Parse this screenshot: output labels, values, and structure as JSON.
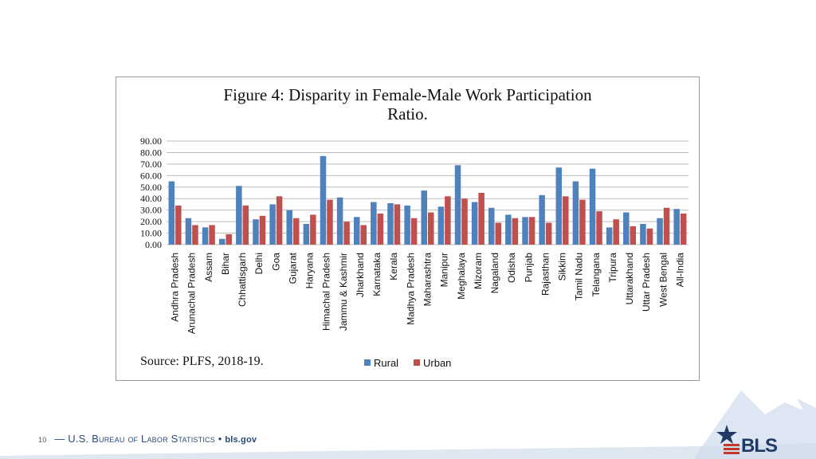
{
  "chart_data": {
    "type": "bar",
    "title": "Figure 4: Disparity in Female-Male Work Participation Ratio.",
    "title_lines": [
      "Figure 4: Disparity in Female-Male Work Participation",
      "Ratio."
    ],
    "categories": [
      "Andhra Pradesh",
      "Arunachal Pradesh",
      "Assam",
      "Bihar",
      "Chhattisgarh",
      "Delhi",
      "Goa",
      "Gujarat",
      "Haryana",
      "Himachal Pradesh",
      "Jammu & Kashmir",
      "Jharkhand",
      "Karnataka",
      "Kerala",
      "Madhya Pradesh",
      "Maharashtra",
      "Manipur",
      "Meghalaya",
      "Mizoram",
      "Nagaland",
      "Odisha",
      "Punjab",
      "Rajasthan",
      "Sikkim",
      "Tamil Nadu",
      "Telangana",
      "Tripura",
      "Uttarakhand",
      "Uttar Pradesh",
      "West Bengal",
      "All-India"
    ],
    "series": [
      {
        "name": "Rural",
        "color": "#4f81bd",
        "values": [
          55,
          23,
          15,
          5,
          51,
          22,
          35,
          30,
          18,
          77,
          41,
          24,
          37,
          36,
          34,
          47,
          33,
          69,
          37,
          32,
          26,
          24,
          43,
          67,
          55,
          66,
          15,
          28,
          18,
          23,
          31
        ]
      },
      {
        "name": "Urban",
        "color": "#c0504d",
        "values": [
          34,
          17,
          17,
          9,
          34,
          25,
          42,
          23,
          26,
          39,
          20,
          17,
          27,
          35,
          23,
          28,
          42,
          40,
          45,
          19,
          23,
          24,
          19,
          42,
          39,
          29,
          22,
          16,
          14,
          32,
          27
        ]
      }
    ],
    "ylim": [
      0,
      90
    ],
    "yticks": [
      "0.00",
      "10.00",
      "20.00",
      "30.00",
      "40.00",
      "50.00",
      "60.00",
      "70.00",
      "80.00",
      "90.00"
    ],
    "grid": true,
    "legend": "bottom-center",
    "source": "Source: PLFS, 2018-19."
  },
  "footer": {
    "page_number": "10",
    "agency": "— U.S. Bureau of Labor Statistics •",
    "site": "bls.gov",
    "logo_text": "BLS"
  },
  "colors": {
    "rural": "#4f81bd",
    "urban": "#c0504d",
    "footer_blue": "#2a4a78"
  }
}
